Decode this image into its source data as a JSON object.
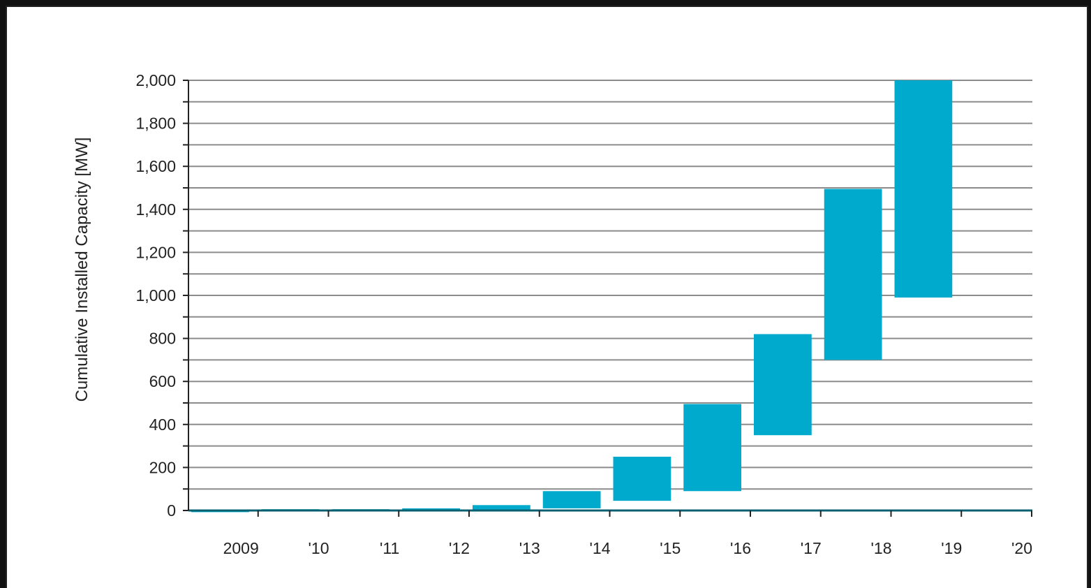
{
  "chart_data": {
    "type": "bar",
    "subtype": "floating-range",
    "ylabel": "Cumulative Installed Capacity [MW]",
    "xlabel": "",
    "ylim": [
      0,
      2000
    ],
    "y_tick_labels": [
      "0",
      "200",
      "400",
      "600",
      "800",
      "1,000",
      "1,200",
      "1,400",
      "1,600",
      "1,800",
      "2,000"
    ],
    "y_tick_values": [
      0,
      200,
      400,
      600,
      800,
      1000,
      1200,
      1400,
      1600,
      1800,
      2000
    ],
    "grid": true,
    "categories": [
      "2009",
      "'10",
      "'11",
      "'12",
      "'13",
      "'14",
      "'15",
      "'16",
      "'17",
      "'18",
      "'19",
      "'20"
    ],
    "ranges": [
      {
        "category": "'10",
        "low": 0,
        "high": 2
      },
      {
        "category": "'11",
        "low": 0,
        "high": 6
      },
      {
        "category": "'12",
        "low": 0,
        "high": 6
      },
      {
        "category": "'13",
        "low": 0,
        "high": 10
      },
      {
        "category": "'14",
        "low": 0,
        "high": 25
      },
      {
        "category": "'15",
        "low": 10,
        "high": 90
      },
      {
        "category": "'16",
        "low": 45,
        "high": 250
      },
      {
        "category": "'17",
        "low": 90,
        "high": 495
      },
      {
        "category": "'18",
        "low": 350,
        "high": 820
      },
      {
        "category": "'19",
        "low": 700,
        "high": 1495
      },
      {
        "category": "'20",
        "low": 990,
        "high": 2000
      }
    ],
    "colors": {
      "bar": "#00aacc",
      "grid": "#8c8c8c",
      "axis": "#222222",
      "baseline": "#0a6070"
    }
  }
}
